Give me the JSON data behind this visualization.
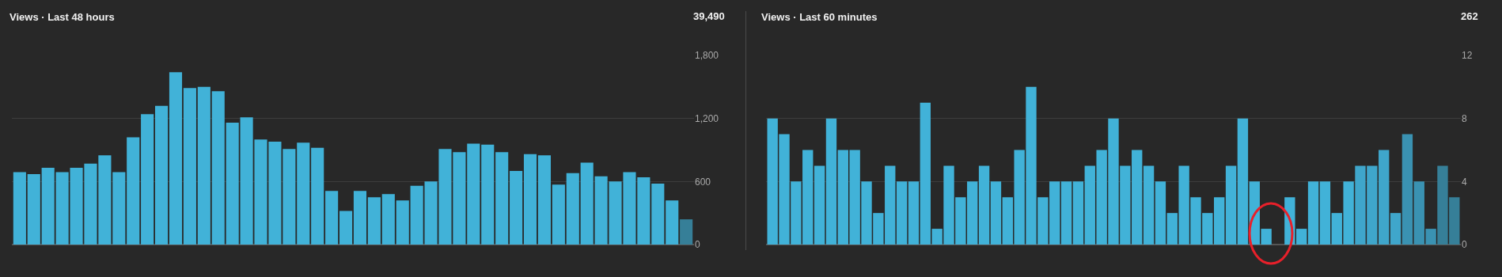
{
  "chart_data": [
    {
      "type": "bar",
      "title": "Views · Last 48 hours",
      "annotations": [
        "39,490"
      ],
      "categories": [
        null,
        null,
        null,
        null,
        null,
        null,
        null,
        null,
        null,
        null,
        null,
        null,
        null,
        null,
        null,
        null,
        null,
        null,
        null,
        null,
        null,
        null,
        null,
        null,
        null,
        null,
        null,
        null,
        null,
        null,
        null,
        null,
        null,
        null,
        null,
        null,
        null,
        null,
        null,
        null,
        null,
        null,
        null,
        null,
        null,
        null,
        null,
        null
      ],
      "values": [
        690,
        670,
        730,
        690,
        730,
        770,
        850,
        690,
        1020,
        1240,
        1320,
        1640,
        1490,
        1500,
        1460,
        1160,
        1210,
        1000,
        980,
        910,
        970,
        920,
        510,
        320,
        510,
        450,
        480,
        420,
        560,
        600,
        910,
        880,
        960,
        950,
        880,
        700,
        860,
        850,
        570,
        680,
        780,
        650,
        600,
        690,
        640,
        580,
        420,
        240
      ],
      "colors": [
        "#41b2d8",
        "#41b2d8",
        "#41b2d8",
        "#41b2d8",
        "#41b2d8",
        "#41b2d8",
        "#41b2d8",
        "#41b2d8",
        "#41b2d8",
        "#41b2d8",
        "#41b2d8",
        "#41b2d8",
        "#41b2d8",
        "#41b2d8",
        "#41b2d8",
        "#41b2d8",
        "#41b2d8",
        "#41b2d8",
        "#41b2d8",
        "#41b2d8",
        "#41b2d8",
        "#41b2d8",
        "#41b2d8",
        "#41b2d8",
        "#41b2d8",
        "#41b2d8",
        "#41b2d8",
        "#41b2d8",
        "#41b2d8",
        "#41b2d8",
        "#41b2d8",
        "#41b2d8",
        "#41b2d8",
        "#41b2d8",
        "#41b2d8",
        "#41b2d8",
        "#41b2d8",
        "#41b2d8",
        "#41b2d8",
        "#41b2d8",
        "#41b2d8",
        "#41b2d8",
        "#41b2d8",
        "#41b2d8",
        "#41b2d8",
        "#41b2d8",
        "#41b2d8",
        "#367f98"
      ],
      "ylim": [
        0,
        1800
      ],
      "yticks": [
        0,
        {
          "value": 600,
          "label": "600"
        },
        {
          "value": 1200,
          "label": "1,200"
        },
        {
          "value": 1800,
          "label": "1,800"
        }
      ],
      "grid": "y",
      "tick_labels": "y"
    },
    {
      "type": "bar",
      "title": "Views · Last 60 minutes",
      "annotations": [
        "262"
      ],
      "categories": [
        null,
        null,
        null,
        null,
        null,
        null,
        null,
        null,
        null,
        null,
        null,
        null,
        null,
        null,
        null,
        null,
        null,
        null,
        null,
        null,
        null,
        null,
        null,
        null,
        null,
        null,
        null,
        null,
        null,
        null,
        null,
        null,
        null,
        null,
        null,
        null,
        null,
        null,
        null,
        null,
        null,
        null,
        null,
        null,
        null,
        null,
        null,
        null,
        null,
        null,
        null,
        null,
        null,
        null,
        null,
        null,
        null,
        null,
        null
      ],
      "values": [
        8,
        7,
        4,
        6,
        5,
        8,
        6,
        6,
        4,
        2,
        5,
        4,
        4,
        9,
        1,
        5,
        3,
        4,
        5,
        4,
        3,
        6,
        10,
        3,
        4,
        4,
        4,
        5,
        6,
        8,
        5,
        6,
        5,
        4,
        2,
        5,
        3,
        2,
        3,
        5,
        8,
        4,
        1,
        0,
        3,
        1,
        4,
        4,
        2,
        4,
        5,
        5,
        6,
        2,
        7,
        4,
        1,
        5,
        3
      ],
      "colors": [
        "#41b2d8",
        "#41b2d8",
        "#41b2d8",
        "#41b2d8",
        "#41b2d8",
        "#41b2d8",
        "#41b2d8",
        "#41b2d8",
        "#41b2d8",
        "#41b2d8",
        "#41b2d8",
        "#41b2d8",
        "#41b2d8",
        "#41b2d8",
        "#41b2d8",
        "#41b2d8",
        "#41b2d8",
        "#41b2d8",
        "#41b2d8",
        "#41b2d8",
        "#41b2d8",
        "#41b2d8",
        "#41b2d8",
        "#41b2d8",
        "#41b2d8",
        "#41b2d8",
        "#41b2d8",
        "#41b2d8",
        "#41b2d8",
        "#41b2d8",
        "#41b2d8",
        "#41b2d8",
        "#41b2d8",
        "#41b2d8",
        "#41b2d8",
        "#41b2d8",
        "#41b2d8",
        "#41b2d8",
        "#41b2d8",
        "#41b2d8",
        "#41b2d8",
        "#41b2d8",
        "#41b2d8",
        "#41b2d8",
        "#41b2d8",
        "#41b2d8",
        "#41b2d8",
        "#41b2d8",
        "#41b2d8",
        "#41b2d8",
        "#3fa6cb",
        "#3fa6cb",
        "#3fa6cb",
        "#3fa6cb",
        "#3a92b2",
        "#3a92b2",
        "#3a92b2",
        "#367f98",
        "#367f98"
      ],
      "ylim": [
        0,
        12
      ],
      "yticks": [
        0,
        4,
        8,
        12
      ],
      "grid": "y",
      "tick_labels": "y"
    }
  ]
}
